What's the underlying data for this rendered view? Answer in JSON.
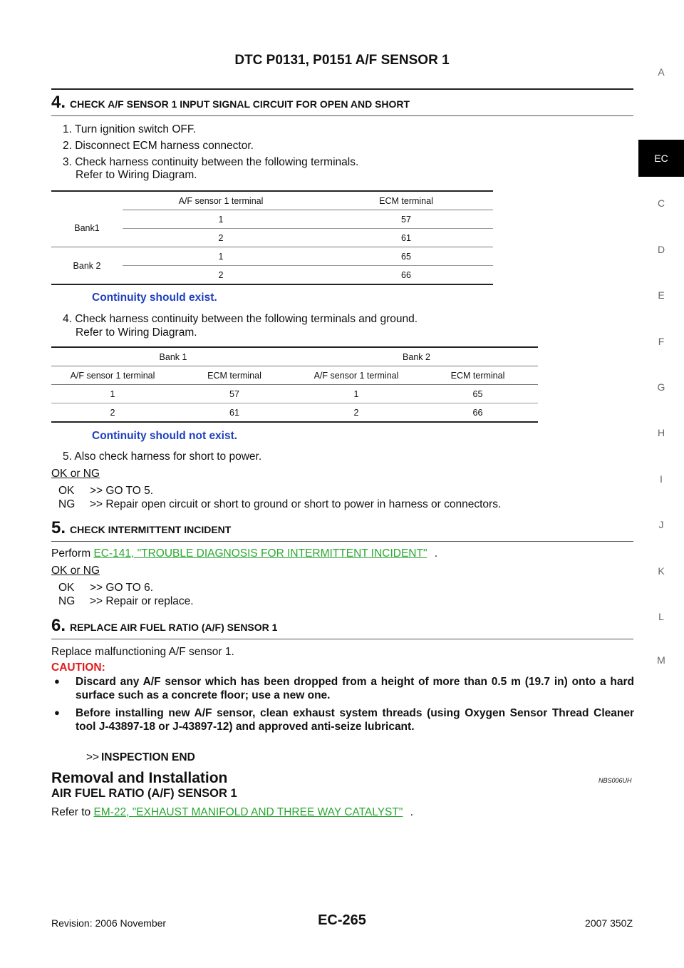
{
  "header": {
    "title": "DTC P0131, P0151 A/F SENSOR 1"
  },
  "sidenav": {
    "letters": [
      "A",
      "EC",
      "C",
      "D",
      "E",
      "F",
      "G",
      "H",
      "I",
      "J",
      "K",
      "L",
      "M"
    ]
  },
  "step4": {
    "num": "4.",
    "title": "CHECK A/F SENSOR 1 INPUT SIGNAL CIRCUIT FOR OPEN AND SHORT",
    "line1": "1.  Turn ignition switch OFF.",
    "line2": "2.  Disconnect ECM harness connector.",
    "line3": "3.  Check harness continuity between the following terminals.",
    "line3b": "Refer to Wiring Diagram.",
    "table1": {
      "headers": [
        "A/F sensor 1 terminal",
        "ECM terminal"
      ],
      "bank1": "Bank1",
      "bank2": "Bank 2",
      "rows": [
        [
          "1",
          "57"
        ],
        [
          "2",
          "61"
        ],
        [
          "1",
          "65"
        ],
        [
          "2",
          "66"
        ]
      ]
    },
    "note1": "Continuity should exist.",
    "line4": "4.  Check harness continuity between the following terminals and ground.",
    "line4b": "Refer to Wiring Diagram.",
    "table2": {
      "groups": [
        "Bank 1",
        "Bank 2"
      ],
      "headers": [
        "A/F sensor 1 terminal",
        "ECM terminal",
        "A/F sensor 1 terminal",
        "ECM terminal"
      ],
      "rows": [
        [
          "1",
          "57",
          "1",
          "65"
        ],
        [
          "2",
          "61",
          "2",
          "66"
        ]
      ]
    },
    "note2": "Continuity should not exist.",
    "line5": "5.  Also check harness for short to power.",
    "oknq": "OK or NG",
    "ok_label": "OK",
    "ok_text": ">> GO TO 5.",
    "ng_label": "NG",
    "ng_text": ">> Repair open circuit or short to ground or short to power in harness or connectors."
  },
  "step5": {
    "num": "5.",
    "title": "CHECK INTERMITTENT INCIDENT",
    "perform": "Perform",
    "link": "EC-141, \"TROUBLE DIAGNOSIS FOR INTERMITTENT INCIDENT\"",
    "period": ".",
    "oknq": "OK or NG",
    "ok_label": "OK",
    "ok_text": ">> GO TO 6.",
    "ng_label": "NG",
    "ng_text": ">> Repair or replace."
  },
  "step6": {
    "num": "6.",
    "title": "REPLACE AIR FUEL RATIO (A/F) SENSOR 1",
    "line1": "Replace malfunctioning A/F sensor 1.",
    "caution": "CAUTION:",
    "bullet1": "Discard any A/F sensor which has been dropped from a height of more than 0.5 m (19.7 in) onto a hard surface such as a concrete floor; use a new one.",
    "bullet2": "Before installing new A/F sensor, clean exhaust system threads (using Oxygen Sensor Thread Cleaner tool J-43897-18 or J-43897-12) and approved anti-seize lubricant.",
    "end_arrow": ">>",
    "end_text": "INSPECTION END"
  },
  "removal": {
    "heading": "Removal and Installation",
    "code": "NBS006UH",
    "subheading": "AIR FUEL RATIO (A/F) SENSOR 1",
    "refer": "Refer to",
    "link": "EM-22, \"EXHAUST MANIFOLD AND THREE WAY CATALYST\"",
    "period": "."
  },
  "footer": {
    "revision": "Revision: 2006 November",
    "page": "EC-265",
    "model": "2007 350Z"
  }
}
